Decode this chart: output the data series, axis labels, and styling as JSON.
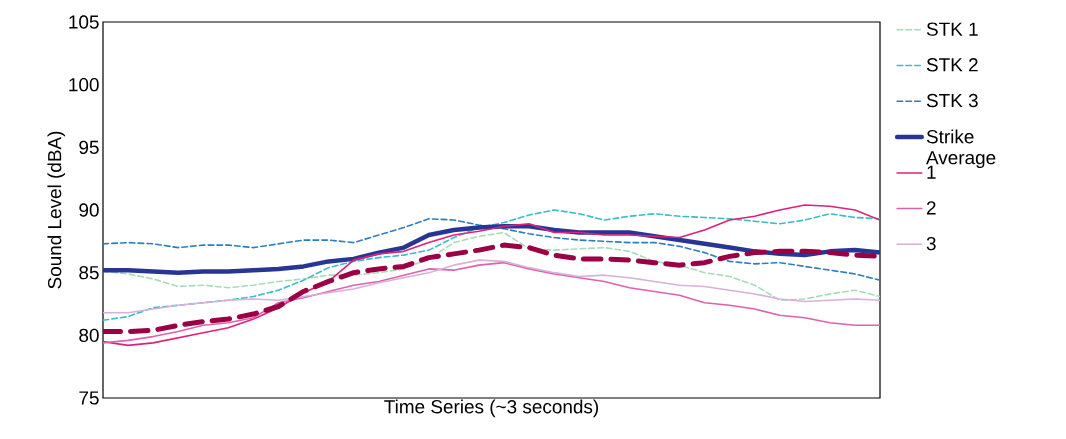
{
  "chart_data": {
    "type": "line",
    "xlabel": "Time Series (~3 seconds)",
    "ylabel": "Sound Level (dBA)",
    "categories": [
      null,
      null,
      null,
      null,
      null,
      null,
      null,
      null,
      null,
      null,
      null,
      null,
      null,
      null,
      null,
      null,
      null,
      null,
      null,
      null,
      null,
      null,
      null,
      null,
      null,
      null,
      null,
      null,
      null,
      null,
      null,
      null
    ],
    "ylim": [
      75,
      105
    ],
    "yticks": [
      75,
      80,
      85,
      90,
      95,
      100,
      105
    ],
    "grid": false,
    "legend": "right",
    "tick_labels": "y",
    "marker": "none",
    "series": [
      {
        "name": "STK 1",
        "color": "#a8dcb8",
        "line_style": "dashed",
        "values": [
          85.1,
          84.9,
          84.5,
          83.9,
          84.0,
          83.8,
          84.0,
          84.3,
          84.5,
          84.8,
          84.8,
          85.0,
          85.3,
          86.1,
          87.4,
          87.9,
          88.2,
          86.9,
          86.8,
          86.9,
          87.0,
          86.7,
          85.9,
          85.6,
          85.0,
          84.7,
          84.0,
          82.8,
          82.9,
          83.3,
          83.6,
          83.1
        ]
      },
      {
        "name": "STK 2",
        "color": "#3bbccb",
        "line_style": "dashed",
        "values": [
          81.2,
          81.5,
          82.2,
          82.4,
          82.6,
          82.8,
          83.1,
          83.6,
          84.4,
          85.4,
          85.9,
          86.2,
          86.4,
          86.8,
          87.8,
          88.6,
          89.0,
          89.6,
          90.0,
          89.7,
          89.2,
          89.5,
          89.7,
          89.5,
          89.4,
          89.3,
          89.1,
          88.9,
          89.2,
          89.7,
          89.4,
          89.3
        ]
      },
      {
        "name": "STK 3",
        "color": "#2a7fc0",
        "line_style": "dashed",
        "values": [
          87.3,
          87.4,
          87.3,
          87.0,
          87.2,
          87.2,
          87.0,
          87.3,
          87.6,
          87.6,
          87.4,
          88.0,
          88.6,
          89.3,
          89.2,
          88.8,
          88.5,
          88.1,
          87.8,
          87.6,
          87.5,
          87.4,
          87.4,
          87.1,
          86.6,
          85.9,
          85.7,
          85.8,
          85.5,
          85.2,
          84.9,
          84.4
        ]
      },
      {
        "name": "Strike Average",
        "color": "#283593",
        "line_style": "solid",
        "values": [
          85.2,
          85.2,
          85.1,
          85.0,
          85.1,
          85.1,
          85.2,
          85.3,
          85.5,
          85.9,
          86.1,
          86.6,
          87.0,
          88.0,
          88.4,
          88.6,
          88.7,
          88.7,
          88.4,
          88.2,
          88.2,
          88.2,
          87.9,
          87.6,
          87.3,
          87.0,
          86.7,
          86.5,
          86.4,
          86.7,
          86.8,
          86.6
        ]
      },
      {
        "name": "1",
        "color": "#e0207a",
        "line_style": "solid",
        "values": [
          79.5,
          79.2,
          79.4,
          79.8,
          80.2,
          80.6,
          81.3,
          82.2,
          83.4,
          84.3,
          86.0,
          86.5,
          86.7,
          87.4,
          88.0,
          88.3,
          88.7,
          88.9,
          88.2,
          88.2,
          88.0,
          88.0,
          87.9,
          87.8,
          88.4,
          89.2,
          89.5,
          90.0,
          90.4,
          90.3,
          90.0,
          89.2
        ]
      },
      {
        "name": "2",
        "color": "#e060b0",
        "line_style": "solid",
        "values": [
          79.4,
          79.6,
          79.9,
          80.3,
          80.8,
          81.0,
          81.4,
          82.6,
          83.0,
          83.5,
          84.0,
          84.3,
          84.8,
          85.3,
          85.2,
          85.6,
          85.8,
          85.3,
          84.9,
          84.6,
          84.3,
          83.8,
          83.5,
          83.2,
          82.6,
          82.4,
          82.1,
          81.6,
          81.4,
          81.0,
          80.8,
          80.8
        ]
      },
      {
        "name": "3",
        "color": "#d8b0d8",
        "line_style": "solid",
        "values": [
          81.8,
          81.8,
          82.1,
          82.4,
          82.6,
          82.8,
          82.9,
          82.8,
          83.1,
          83.4,
          83.7,
          84.2,
          84.6,
          85.0,
          85.6,
          86.0,
          85.9,
          85.4,
          85.0,
          84.7,
          84.8,
          84.6,
          84.3,
          84.0,
          83.9,
          83.6,
          83.3,
          82.9,
          82.7,
          82.8,
          82.9,
          82.8
        ]
      },
      {
        "color": "#9b0045",
        "line_style": "dashed",
        "values": [
          80.3,
          80.3,
          80.4,
          80.8,
          81.1,
          81.3,
          81.7,
          82.3,
          83.5,
          84.3,
          85.0,
          85.3,
          85.5,
          86.2,
          86.5,
          86.8,
          87.2,
          87.0,
          86.4,
          86.1,
          86.1,
          86.0,
          85.8,
          85.6,
          85.8,
          86.3,
          86.6,
          86.7,
          86.7,
          86.6,
          86.4,
          86.3
        ]
      }
    ]
  }
}
